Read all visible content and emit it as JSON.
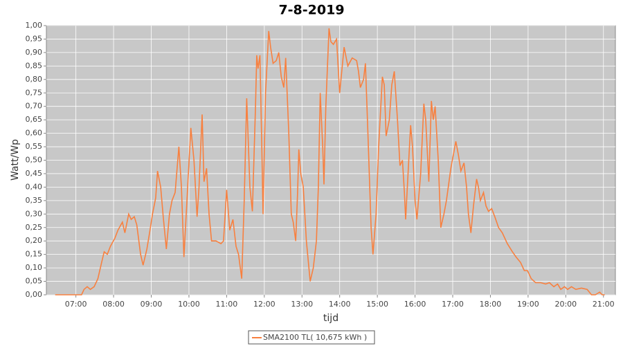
{
  "chart_data": {
    "type": "line",
    "title": "7-8-2019",
    "x_label": "tijd",
    "y_label": "Watt/Wp",
    "x": [
      "06:27",
      "07:09",
      "07:13",
      "07:18",
      "07:23",
      "07:29",
      "07:35",
      "07:41",
      "07:45",
      "07:50",
      "07:55",
      "08:02",
      "08:07",
      "08:14",
      "08:18",
      "08:24",
      "08:28",
      "08:33",
      "08:37",
      "08:43",
      "08:47",
      "08:53",
      "08:58",
      "09:02",
      "09:07",
      "09:10",
      "09:15",
      "09:19",
      "09:24",
      "09:29",
      "09:33",
      "09:38",
      "09:44",
      "09:48",
      "09:52",
      "09:58",
      "10:03",
      "10:08",
      "10:13",
      "10:16",
      "10:21",
      "10:24",
      "10:28",
      "10:32",
      "10:36",
      "10:43",
      "10:51",
      "10:55",
      "11:00",
      "11:05",
      "11:10",
      "11:15",
      "11:19",
      "11:24",
      "11:28",
      "11:32",
      "11:37",
      "11:41",
      "11:46",
      "11:48",
      "11:50",
      "11:53",
      "11:56",
      "11:58",
      "12:02",
      "12:07",
      "12:10",
      "12:14",
      "12:19",
      "12:23",
      "12:27",
      "12:31",
      "12:34",
      "12:39",
      "12:43",
      "12:46",
      "12:50",
      "12:53",
      "12:55",
      "12:58",
      "13:02",
      "13:07",
      "13:13",
      "13:18",
      "13:23",
      "13:26",
      "13:29",
      "13:33",
      "13:35",
      "13:38",
      "13:43",
      "13:46",
      "13:50",
      "13:55",
      "14:00",
      "14:07",
      "14:13",
      "14:20",
      "14:27",
      "14:30",
      "14:33",
      "14:38",
      "14:41",
      "14:45",
      "14:50",
      "14:53",
      "14:58",
      "15:02",
      "15:08",
      "15:11",
      "15:14",
      "15:19",
      "15:23",
      "15:27",
      "15:32",
      "15:36",
      "15:40",
      "15:43",
      "15:45",
      "15:50",
      "15:53",
      "15:56",
      "16:00",
      "16:03",
      "16:09",
      "16:14",
      "16:17",
      "16:22",
      "16:26",
      "16:29",
      "16:32",
      "16:37",
      "16:41",
      "16:46",
      "16:50",
      "16:57",
      "17:05",
      "17:09",
      "17:13",
      "17:18",
      "17:22",
      "17:25",
      "17:29",
      "17:33",
      "17:38",
      "17:41",
      "17:44",
      "17:49",
      "17:53",
      "17:57",
      "18:02",
      "18:07",
      "18:13",
      "18:19",
      "18:27",
      "18:35",
      "18:41",
      "18:48",
      "18:54",
      "18:59",
      "19:05",
      "19:12",
      "19:20",
      "19:28",
      "19:34",
      "19:41",
      "19:47",
      "19:52",
      "19:58",
      "20:03",
      "20:09",
      "20:16",
      "20:25",
      "20:34",
      "20:41",
      "20:47",
      "20:54",
      "20:58",
      "21:02"
    ],
    "series": [
      {
        "name": "SMA2100 TL( 10,675 kWh )",
        "color": "#f8803f",
        "values": [
          0,
          0,
          0.02,
          0.03,
          0.02,
          0.03,
          0.06,
          0.12,
          0.16,
          0.15,
          0.18,
          0.21,
          0.24,
          0.27,
          0.23,
          0.3,
          0.28,
          0.29,
          0.26,
          0.15,
          0.11,
          0.17,
          0.24,
          0.3,
          0.36,
          0.46,
          0.4,
          0.29,
          0.17,
          0.3,
          0.35,
          0.38,
          0.55,
          0.4,
          0.14,
          0.4,
          0.62,
          0.5,
          0.29,
          0.4,
          0.67,
          0.42,
          0.47,
          0.3,
          0.2,
          0.2,
          0.19,
          0.2,
          0.39,
          0.24,
          0.28,
          0.18,
          0.15,
          0.06,
          0.35,
          0.73,
          0.4,
          0.31,
          0.7,
          0.89,
          0.84,
          0.89,
          0.55,
          0.3,
          0.75,
          0.98,
          0.92,
          0.86,
          0.87,
          0.9,
          0.81,
          0.77,
          0.88,
          0.6,
          0.3,
          0.27,
          0.2,
          0.38,
          0.54,
          0.45,
          0.4,
          0.2,
          0.05,
          0.1,
          0.2,
          0.4,
          0.75,
          0.55,
          0.41,
          0.7,
          0.99,
          0.94,
          0.93,
          0.95,
          0.75,
          0.92,
          0.85,
          0.88,
          0.87,
          0.83,
          0.77,
          0.8,
          0.86,
          0.6,
          0.25,
          0.15,
          0.3,
          0.55,
          0.81,
          0.78,
          0.59,
          0.65,
          0.78,
          0.83,
          0.65,
          0.48,
          0.5,
          0.38,
          0.28,
          0.5,
          0.63,
          0.55,
          0.35,
          0.28,
          0.45,
          0.71,
          0.65,
          0.42,
          0.72,
          0.65,
          0.7,
          0.5,
          0.25,
          0.3,
          0.35,
          0.47,
          0.57,
          0.52,
          0.46,
          0.49,
          0.4,
          0.3,
          0.23,
          0.33,
          0.43,
          0.4,
          0.35,
          0.38,
          0.33,
          0.31,
          0.32,
          0.29,
          0.25,
          0.23,
          0.19,
          0.16,
          0.14,
          0.12,
          0.09,
          0.09,
          0.06,
          0.045,
          0.045,
          0.04,
          0.045,
          0.03,
          0.04,
          0.02,
          0.03,
          0.02,
          0.03,
          0.02,
          0.025,
          0.02,
          0,
          0,
          0.01,
          0,
          0
        ]
      }
    ],
    "xlim": [
      "06:13",
      "21:19"
    ],
    "xticks": [
      "07:00",
      "08:00",
      "09:00",
      "10:00",
      "11:00",
      "12:00",
      "13:00",
      "14:00",
      "15:00",
      "16:00",
      "17:00",
      "18:00",
      "19:00",
      "20:00",
      "21:00"
    ],
    "ylim": [
      0,
      1
    ],
    "yticks": [
      {
        "value": 0,
        "label": "0,00"
      },
      {
        "value": 0.05,
        "label": "0,05"
      },
      {
        "value": 0.1,
        "label": "0,10"
      },
      {
        "value": 0.15,
        "label": "0,15"
      },
      {
        "value": 0.2,
        "label": "0,20"
      },
      {
        "value": 0.25,
        "label": "0,25"
      },
      {
        "value": 0.3,
        "label": "0,30"
      },
      {
        "value": 0.35,
        "label": "0,35"
      },
      {
        "value": 0.4,
        "label": "0,40"
      },
      {
        "value": 0.45,
        "label": "0,45"
      },
      {
        "value": 0.5,
        "label": "0,50"
      },
      {
        "value": 0.55,
        "label": "0,55"
      },
      {
        "value": 0.6,
        "label": "0,60"
      },
      {
        "value": 0.65,
        "label": "0,65"
      },
      {
        "value": 0.7,
        "label": "0,70"
      },
      {
        "value": 0.75,
        "label": "0,75"
      },
      {
        "value": 0.8,
        "label": "0,80"
      },
      {
        "value": 0.85,
        "label": "0,85"
      },
      {
        "value": 0.9,
        "label": "0,90"
      },
      {
        "value": 0.95,
        "label": "0,95"
      },
      {
        "value": 1,
        "label": "1,00"
      }
    ],
    "grid": true,
    "legend": "bottom"
  }
}
